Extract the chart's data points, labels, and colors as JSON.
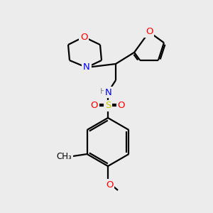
{
  "background_color": "#ececec",
  "line_color": "black",
  "line_width": 1.6,
  "atom_colors": {
    "O": "#ff0000",
    "N": "#0000ff",
    "S": "#cccc00",
    "H": "#778888",
    "C": "#000000"
  },
  "font_size": 9.5,
  "fig_size": [
    3.0,
    3.0
  ],
  "dpi": 100
}
